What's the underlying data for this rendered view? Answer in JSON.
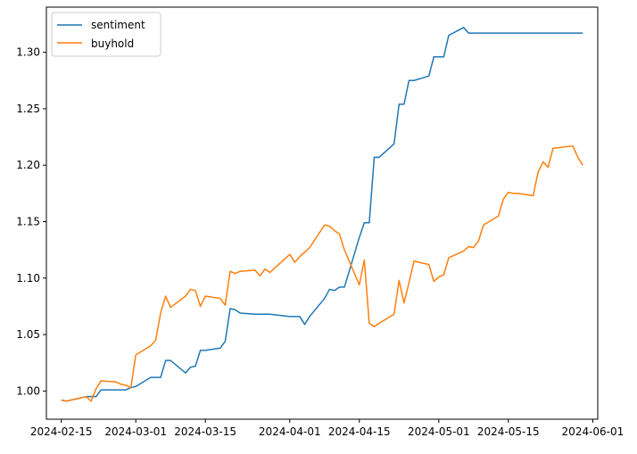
{
  "chart_data": {
    "type": "line",
    "title": "",
    "xlabel": "",
    "ylabel": "",
    "x_axis_type": "date",
    "xlim": [
      "2024-02-12",
      "2024-06-02"
    ],
    "ylim": [
      0.975,
      1.34
    ],
    "x_ticks": [
      "2024-02-15",
      "2024-03-01",
      "2024-03-15",
      "2024-04-01",
      "2024-04-15",
      "2024-05-01",
      "2024-05-15",
      "2024-06-01"
    ],
    "y_ticks": [
      1.0,
      1.05,
      1.1,
      1.15,
      1.2,
      1.25,
      1.3
    ],
    "y_tick_labels": [
      "1.00",
      "1.05",
      "1.10",
      "1.15",
      "1.20",
      "1.25",
      "1.30"
    ],
    "grid": false,
    "legend": {
      "placement": "top-left",
      "entries": [
        "sentiment",
        "buyhold"
      ]
    },
    "series": [
      {
        "name": "sentiment",
        "color": "#1f77b4",
        "x": [
          "2024-02-15",
          "2024-02-16",
          "2024-02-20",
          "2024-02-21",
          "2024-02-22",
          "2024-02-23",
          "2024-02-26",
          "2024-02-27",
          "2024-02-28",
          "2024-02-29",
          "2024-03-01",
          "2024-03-04",
          "2024-03-05",
          "2024-03-06",
          "2024-03-07",
          "2024-03-08",
          "2024-03-11",
          "2024-03-12",
          "2024-03-13",
          "2024-03-14",
          "2024-03-15",
          "2024-03-18",
          "2024-03-19",
          "2024-03-20",
          "2024-03-21",
          "2024-03-22",
          "2024-03-25",
          "2024-03-26",
          "2024-03-27",
          "2024-03-28",
          "2024-04-01",
          "2024-04-02",
          "2024-04-03",
          "2024-04-04",
          "2024-04-05",
          "2024-04-08",
          "2024-04-09",
          "2024-04-10",
          "2024-04-11",
          "2024-04-12",
          "2024-04-15",
          "2024-04-16",
          "2024-04-17",
          "2024-04-18",
          "2024-04-19",
          "2024-04-22",
          "2024-04-23",
          "2024-04-24",
          "2024-04-25",
          "2024-04-26",
          "2024-04-29",
          "2024-04-30",
          "2024-05-01",
          "2024-05-02",
          "2024-05-03",
          "2024-05-06",
          "2024-05-07",
          "2024-05-08",
          "2024-05-09",
          "2024-05-10",
          "2024-05-13",
          "2024-05-14",
          "2024-05-15",
          "2024-05-16",
          "2024-05-17",
          "2024-05-20",
          "2024-05-21",
          "2024-05-22",
          "2024-05-23",
          "2024-05-24",
          "2024-05-28",
          "2024-05-29",
          "2024-05-30"
        ],
        "y": [
          0.992,
          0.991,
          0.995,
          0.995,
          0.995,
          1.001,
          1.001,
          1.001,
          1.001,
          1.003,
          1.004,
          1.012,
          1.012,
          1.012,
          1.027,
          1.027,
          1.016,
          1.021,
          1.022,
          1.036,
          1.036,
          1.038,
          1.044,
          1.073,
          1.072,
          1.069,
          1.068,
          1.068,
          1.068,
          1.068,
          1.066,
          1.066,
          1.066,
          1.059,
          1.066,
          1.082,
          1.09,
          1.089,
          1.092,
          1.092,
          1.136,
          1.149,
          1.149,
          1.207,
          1.207,
          1.219,
          1.254,
          1.254,
          1.275,
          1.275,
          1.279,
          1.296,
          1.296,
          1.296,
          1.315,
          1.322,
          1.317,
          1.317,
          1.317,
          1.317,
          1.317,
          1.317,
          1.317,
          1.317,
          1.317,
          1.317,
          1.317,
          1.317,
          1.317,
          1.317,
          1.317,
          1.317,
          1.317
        ]
      },
      {
        "name": "buyhold",
        "color": "#ff7f0e",
        "x": [
          "2024-02-15",
          "2024-02-16",
          "2024-02-20",
          "2024-02-21",
          "2024-02-22",
          "2024-02-23",
          "2024-02-26",
          "2024-02-27",
          "2024-02-28",
          "2024-02-29",
          "2024-03-01",
          "2024-03-04",
          "2024-03-05",
          "2024-03-06",
          "2024-03-07",
          "2024-03-08",
          "2024-03-11",
          "2024-03-12",
          "2024-03-13",
          "2024-03-14",
          "2024-03-15",
          "2024-03-18",
          "2024-03-19",
          "2024-03-20",
          "2024-03-21",
          "2024-03-22",
          "2024-03-25",
          "2024-03-26",
          "2024-03-27",
          "2024-03-28",
          "2024-04-01",
          "2024-04-02",
          "2024-04-03",
          "2024-04-04",
          "2024-04-05",
          "2024-04-08",
          "2024-04-09",
          "2024-04-10",
          "2024-04-11",
          "2024-04-12",
          "2024-04-15",
          "2024-04-16",
          "2024-04-17",
          "2024-04-18",
          "2024-04-19",
          "2024-04-22",
          "2024-04-23",
          "2024-04-24",
          "2024-04-25",
          "2024-04-26",
          "2024-04-29",
          "2024-04-30",
          "2024-05-01",
          "2024-05-02",
          "2024-05-03",
          "2024-05-06",
          "2024-05-07",
          "2024-05-08",
          "2024-05-09",
          "2024-05-10",
          "2024-05-13",
          "2024-05-14",
          "2024-05-15",
          "2024-05-16",
          "2024-05-17",
          "2024-05-20",
          "2024-05-21",
          "2024-05-22",
          "2024-05-23",
          "2024-05-24",
          "2024-05-28",
          "2024-05-29",
          "2024-05-30"
        ],
        "y": [
          0.992,
          0.991,
          0.995,
          0.991,
          1.002,
          1.009,
          1.008,
          1.006,
          1.005,
          1.003,
          1.032,
          1.04,
          1.045,
          1.069,
          1.084,
          1.074,
          1.084,
          1.09,
          1.089,
          1.075,
          1.084,
          1.082,
          1.076,
          1.106,
          1.104,
          1.106,
          1.107,
          1.102,
          1.108,
          1.105,
          1.121,
          1.114,
          1.119,
          1.123,
          1.127,
          1.147,
          1.146,
          1.142,
          1.139,
          1.125,
          1.094,
          1.116,
          1.06,
          1.057,
          1.06,
          1.068,
          1.098,
          1.078,
          1.096,
          1.115,
          1.112,
          1.097,
          1.101,
          1.103,
          1.118,
          1.124,
          1.128,
          1.127,
          1.133,
          1.147,
          1.155,
          1.17,
          1.176,
          1.175,
          1.175,
          1.173,
          1.194,
          1.203,
          1.198,
          1.215,
          1.217,
          1.207,
          1.2
        ]
      }
    ]
  }
}
